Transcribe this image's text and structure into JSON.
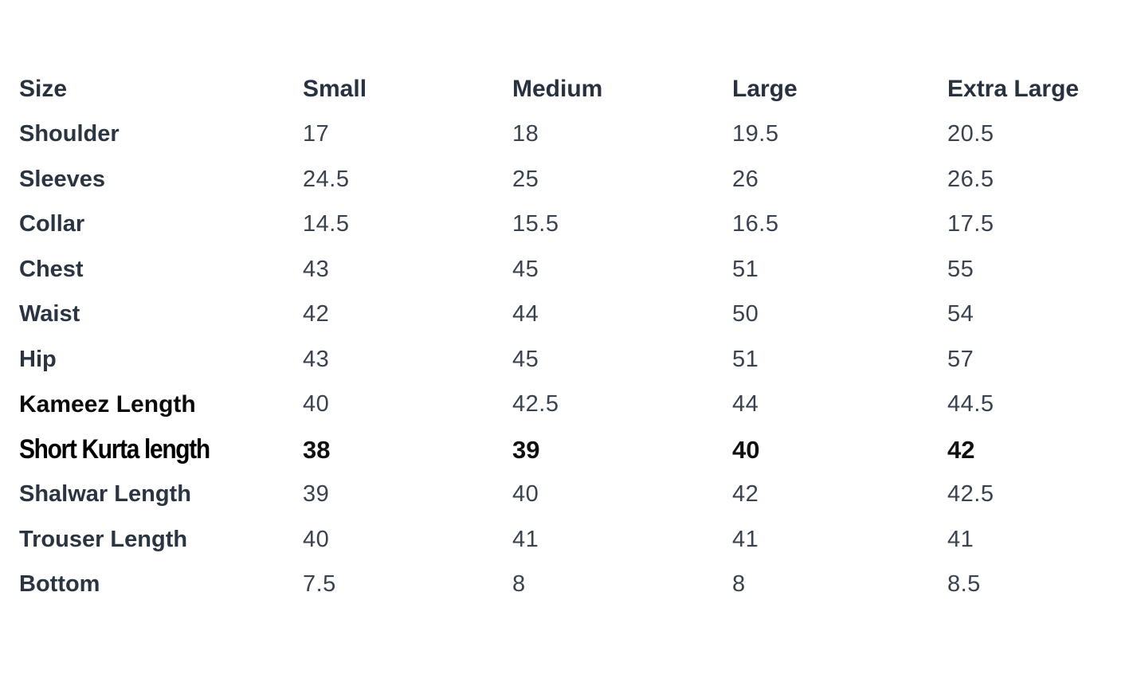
{
  "colors": {
    "background": "#ffffff",
    "header_text": "#273140",
    "label_text": "#2b3441",
    "value_text": "#39424e",
    "emphasis_text": "#000000"
  },
  "chart_data": {
    "type": "table",
    "columns": [
      "Size",
      "Small",
      "Medium",
      "Large",
      "Extra Large"
    ],
    "rows": [
      {
        "label": "Shoulder",
        "values": [
          "17",
          "18",
          "19.5",
          "20.5"
        ]
      },
      {
        "label": "Sleeves",
        "values": [
          "24.5",
          "25",
          "26",
          "26.5"
        ]
      },
      {
        "label": "Collar",
        "values": [
          "14.5",
          "15.5",
          "16.5",
          "17.5"
        ]
      },
      {
        "label": "Chest",
        "values": [
          "43",
          "45",
          "51",
          "55"
        ]
      },
      {
        "label": "Waist",
        "values": [
          "42",
          "44",
          "50",
          "54"
        ]
      },
      {
        "label": "Hip",
        "values": [
          "43",
          "45",
          "51",
          "57"
        ]
      },
      {
        "label": "Kameez Length",
        "values": [
          "40",
          "42.5",
          "44",
          "44.5"
        ]
      },
      {
        "label": "Short Kurta length",
        "values": [
          "38",
          "39",
          "40",
          "42"
        ]
      },
      {
        "label": "Shalwar Length",
        "values": [
          "39",
          "40",
          "42",
          "42.5"
        ]
      },
      {
        "label": "Trouser Length",
        "values": [
          "40",
          "41",
          "41",
          "41"
        ]
      },
      {
        "label": "Bottom",
        "values": [
          "7.5",
          "8",
          "8",
          "8.5"
        ]
      }
    ]
  }
}
